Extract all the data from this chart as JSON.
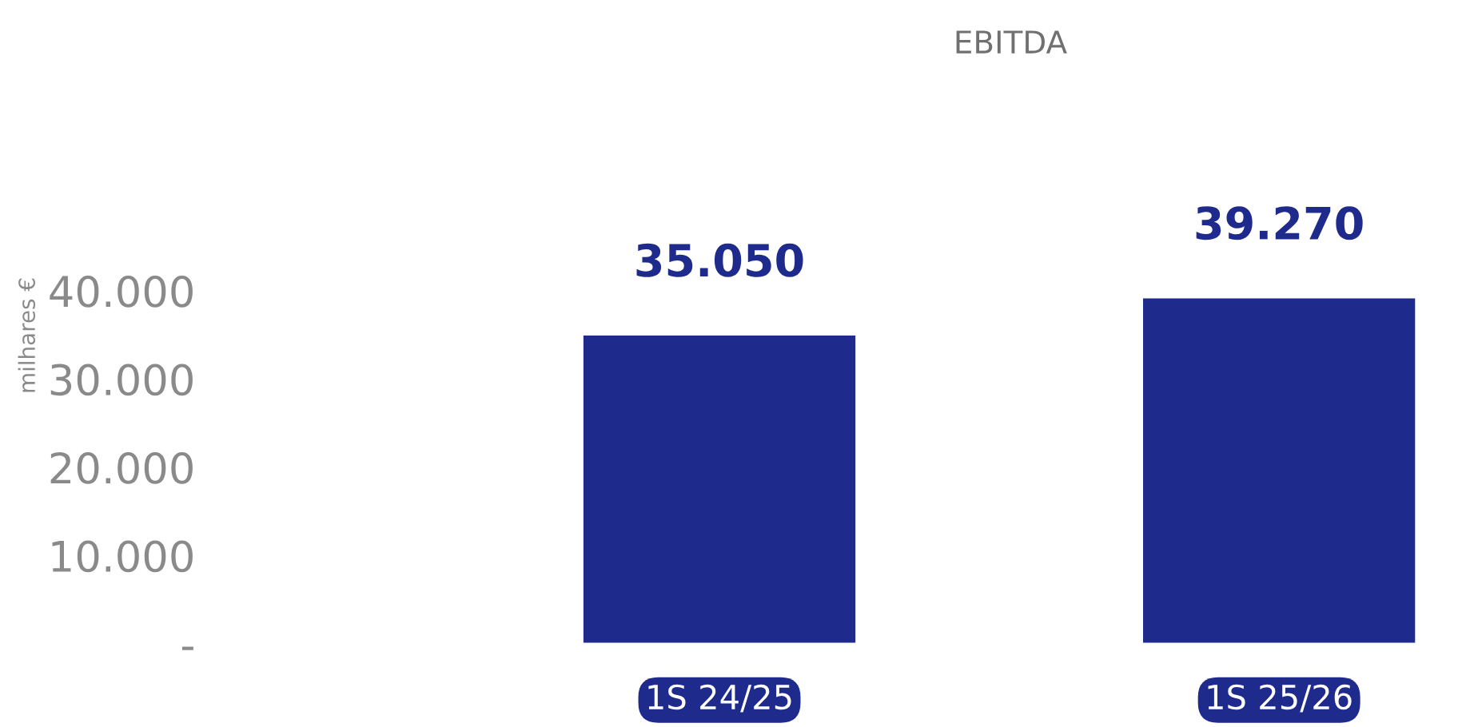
{
  "chart_data": {
    "type": "bar",
    "title": "EBITDA",
    "ylabel": "milhares €",
    "categories": [
      "1S 24/25",
      "1S 25/26"
    ],
    "values": [
      35050,
      39270
    ],
    "value_labels": [
      "35.050",
      "39.270"
    ],
    "color": "#1f2b8c",
    "ylim": [
      0,
      40000
    ],
    "yticks": [
      {
        "value": 0,
        "label": "-"
      },
      {
        "value": 10000,
        "label": "10.000"
      },
      {
        "value": 20000,
        "label": "20.000"
      },
      {
        "value": 30000,
        "label": "30.000"
      },
      {
        "value": 40000,
        "label": "40.000"
      }
    ],
    "grid": false,
    "legend": false
  }
}
